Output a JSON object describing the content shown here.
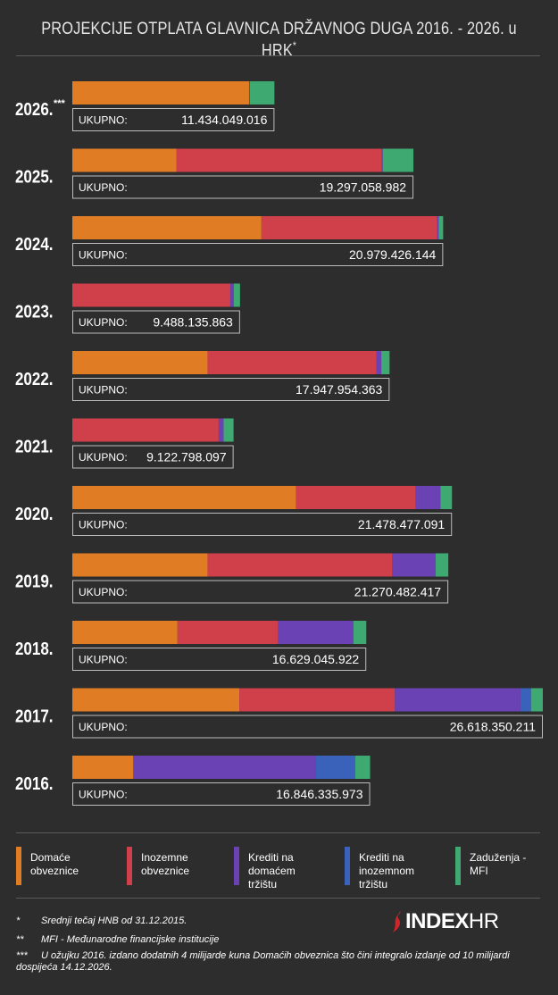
{
  "title": "PROJEKCIJE OTPLATA GLAVNICA DRŽAVNOG DUGA 2016. - 2026. u HRK",
  "title_mark": "*",
  "total_label": "UKUPNO:",
  "colors": {
    "domace": "#e07c24",
    "inozemne": "#d0404a",
    "krediti_dom": "#6a42b4",
    "krediti_ino": "#3b62bb",
    "mfi": "#3eaa72",
    "background": "#2d2d2d"
  },
  "legend": [
    {
      "label": "Domaće obveznice",
      "color": "#e07c24"
    },
    {
      "label": "Inozemne obveznice",
      "color": "#d0404a"
    },
    {
      "label": "Krediti na domaćem tržištu",
      "color": "#6a42b4"
    },
    {
      "label": "Krediti na inozemnom tržištu",
      "color": "#3b62bb"
    },
    {
      "label": "Zaduženja - MFI",
      "color": "#3eaa72"
    }
  ],
  "notes": [
    {
      "mark": "*",
      "text": "Srednji tečaj HNB od 31.12.2015."
    },
    {
      "mark": "**",
      "text": "MFI - Međunarodne financijske institucije"
    },
    {
      "mark": "***",
      "text": "U ožujku 2016. izdano dodatnih 4 milijarde kuna Domaćih obveznica što čini integralo izdanje od 10 milijardi dospijeća 14.12.2026."
    }
  ],
  "logo": {
    "brand": "INDEX",
    "suffix": "HR"
  },
  "chart_data": {
    "type": "bar",
    "orientation": "horizontal",
    "stacked": true,
    "unit": "HRK",
    "series_names": [
      "Domaće obveznice",
      "Inozemne obveznice",
      "Krediti na domaćem tržištu",
      "Krediti na inozemnom tržištu",
      "Zaduženja - MFI"
    ],
    "rows": [
      {
        "year": "2026.",
        "year_mark": "***",
        "total": "11.434.049.016",
        "total_value": 11434049016,
        "values": [
          10000000000,
          0,
          50000000,
          0,
          1384049016
        ]
      },
      {
        "year": "2025.",
        "year_mark": "",
        "total": "19.297.058.982",
        "total_value": 19297058982,
        "values": [
          5900000000,
          11600000000,
          60000000,
          0,
          1737058982
        ]
      },
      {
        "year": "2024.",
        "year_mark": "",
        "total": "20.979.426.144",
        "total_value": 20979426144,
        "values": [
          10700000000,
          9950000000,
          80000000,
          0,
          249426144
        ]
      },
      {
        "year": "2023.",
        "year_mark": "",
        "total": "9.488.135.863",
        "total_value": 9488135863,
        "values": [
          0,
          8950000000,
          180000000,
          0,
          358135863
        ]
      },
      {
        "year": "2022.",
        "year_mark": "",
        "total": "17.947.954.363",
        "total_value": 17947954363,
        "values": [
          7650000000,
          9550000000,
          280000000,
          0,
          467954363
        ]
      },
      {
        "year": "2021.",
        "year_mark": "",
        "total": "9.122.798.097",
        "total_value": 9122798097,
        "values": [
          0,
          8280000000,
          280000000,
          0,
          562798097
        ]
      },
      {
        "year": "2020.",
        "year_mark": "",
        "total": "21.478.477.091",
        "total_value": 21478477091,
        "values": [
          12650000000,
          6780000000,
          1400000000,
          0,
          648477091
        ]
      },
      {
        "year": "2019.",
        "year_mark": "",
        "total": "21.270.482.417",
        "total_value": 21270482417,
        "values": [
          7650000000,
          10450000000,
          2450000000,
          0,
          720482417
        ]
      },
      {
        "year": "2018.",
        "year_mark": "",
        "total": "16.629.045.922",
        "total_value": 16629045922,
        "values": [
          5950000000,
          5700000000,
          4250000000,
          0,
          729045922
        ]
      },
      {
        "year": "2017.",
        "year_mark": "",
        "total": "26.618.350.211",
        "total_value": 26618350211,
        "values": [
          9450000000,
          8800000000,
          7100000000,
          600000000,
          668350211
        ]
      },
      {
        "year": "2016.",
        "year_mark": "",
        "total": "16.846.335.973",
        "total_value": 16846335973,
        "values": [
          3450000000,
          0,
          10300000000,
          2250000000,
          846335973
        ]
      }
    ]
  }
}
